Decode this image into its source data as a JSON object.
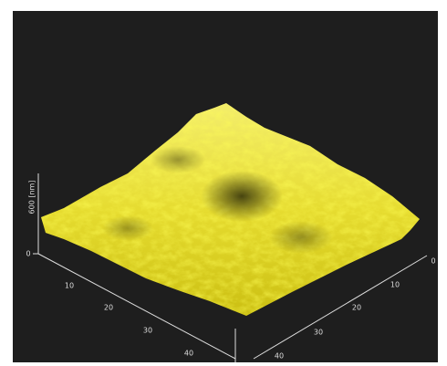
{
  "z_axis": {
    "label": "600 [nm]",
    "ticks": [
      "0"
    ]
  },
  "left_axis": {
    "ticks": [
      "10",
      "20",
      "30",
      "40"
    ]
  },
  "right_axis": {
    "ticks": [
      "0",
      "10",
      "20",
      "30",
      "40"
    ]
  }
}
